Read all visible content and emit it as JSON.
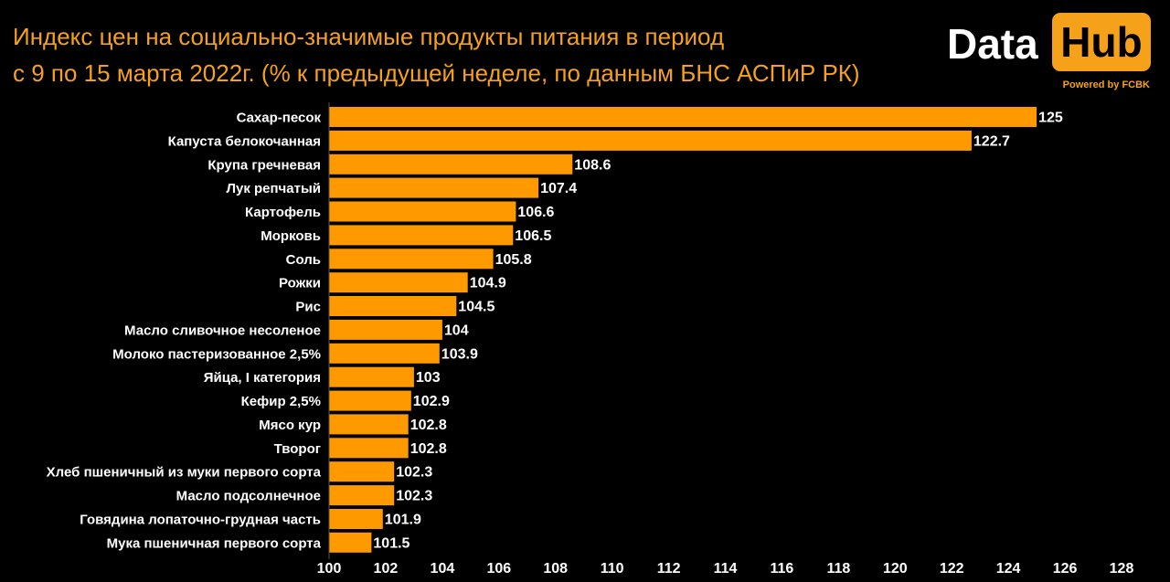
{
  "title_line1": "Индекс цен на социально-значимые продукты питания в период",
  "title_line2": "с 9 по 15 марта 2022г. (% к предыдущей неделе, по данным БНС АСПиР РК)",
  "logo": {
    "word1": "Data",
    "word2": "Hub",
    "tagline": "Powered by FCBK"
  },
  "colors": {
    "bar": "#ff9900",
    "accent": "#f5a11a",
    "background": "#000000",
    "text": "#ffffff"
  },
  "chart_data": {
    "type": "bar",
    "orientation": "horizontal",
    "categories": [
      "Сахар-песок",
      "Капуста белокочанная",
      "Крупа гречневая",
      "Лук репчатый",
      "Картофель",
      "Морковь",
      "Соль",
      "Рожки",
      "Рис",
      "Масло сливочное несоленое",
      "Молоко пастеризованное 2,5%",
      "Яйца, I категория",
      "Кефир 2,5%",
      "Мясо кур",
      "Творог",
      "Хлеб пшеничный из муки первого сорта",
      "Масло подсолнечное",
      "Говядина лопаточно-грудная часть",
      "Мука пшеничная первого сорта"
    ],
    "values": [
      125,
      122.7,
      108.6,
      107.4,
      106.6,
      106.5,
      105.8,
      104.9,
      104.5,
      104,
      103.9,
      103,
      102.9,
      102.8,
      102.8,
      102.3,
      102.3,
      101.9,
      101.5
    ],
    "data_labels": [
      "125",
      "122.7",
      "108.6",
      "107.4",
      "106.6",
      "106.5",
      "105.8",
      "104.9",
      "104.5",
      "104",
      "103.9",
      "103",
      "102.9",
      "102.8",
      "102.8",
      "102.3",
      "102.3",
      "101.9",
      "101.5"
    ],
    "xlim": [
      100,
      128
    ],
    "x_ticks": [
      "100",
      "102",
      "104",
      "106",
      "108",
      "110",
      "112",
      "114",
      "116",
      "118",
      "120",
      "122",
      "124",
      "126",
      "128"
    ],
    "grid": false,
    "legend": "none"
  }
}
